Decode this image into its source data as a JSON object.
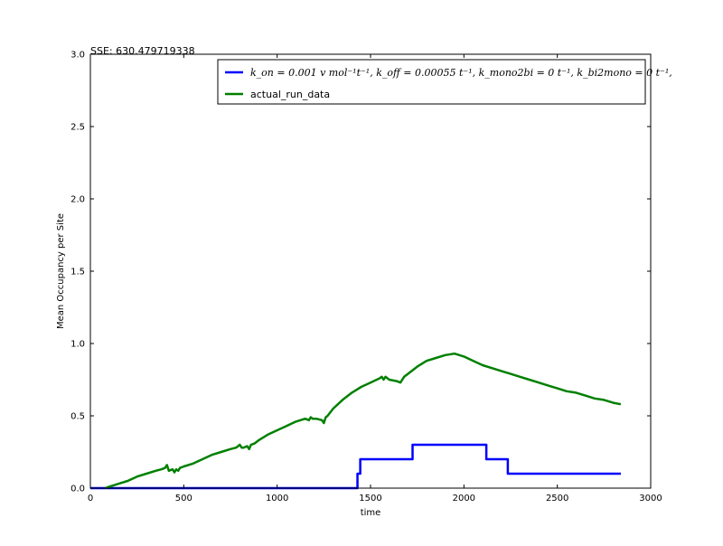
{
  "chart_data": {
    "type": "line",
    "title": "SSE: 630.479719338",
    "xlabel": "time",
    "ylabel": "Mean Occupancy per Site",
    "xlim": [
      0,
      3000
    ],
    "ylim": [
      0,
      3.0
    ],
    "xticks": [
      "0",
      "500",
      "1000",
      "1500",
      "2000",
      "2500",
      "3000"
    ],
    "yticks": [
      "0.0",
      "0.5",
      "1.0",
      "1.5",
      "2.0",
      "2.5",
      "3.0"
    ],
    "grid": false,
    "legend_position": "top-right",
    "series": [
      {
        "name": "k_on = 0.001 v mol⁻¹t⁻¹, k_off = 0.00055 t⁻¹, k_mono2bi = 0 t⁻¹, k_bi2mono = 0 t⁻¹,",
        "color": "#0000ff",
        "step": true,
        "x": [
          0,
          1430,
          1430,
          1445,
          1445,
          1725,
          1725,
          2120,
          2120,
          2235,
          2235,
          2840
        ],
        "y": [
          0.0,
          0.0,
          0.1,
          0.1,
          0.2,
          0.2,
          0.3,
          0.3,
          0.2,
          0.2,
          0.1,
          0.1
        ]
      },
      {
        "name": "actual_run_data",
        "color": "#008000",
        "step": false,
        "x": [
          80,
          100,
          150,
          200,
          250,
          300,
          350,
          380,
          400,
          410,
          420,
          440,
          450,
          460,
          470,
          480,
          500,
          550,
          600,
          650,
          700,
          750,
          780,
          790,
          800,
          810,
          820,
          840,
          850,
          860,
          880,
          900,
          950,
          1000,
          1050,
          1100,
          1150,
          1170,
          1180,
          1190,
          1210,
          1240,
          1250,
          1260,
          1270,
          1300,
          1350,
          1400,
          1450,
          1500,
          1550,
          1560,
          1570,
          1580,
          1600,
          1640,
          1660,
          1670,
          1680,
          1700,
          1750,
          1800,
          1850,
          1900,
          1950,
          2000,
          2050,
          2100,
          2150,
          2200,
          2250,
          2300,
          2350,
          2400,
          2450,
          2500,
          2550,
          2600,
          2650,
          2700,
          2750,
          2800,
          2840
        ],
        "y": [
          0.0,
          0.01,
          0.03,
          0.05,
          0.08,
          0.1,
          0.12,
          0.13,
          0.14,
          0.16,
          0.12,
          0.13,
          0.11,
          0.13,
          0.12,
          0.14,
          0.15,
          0.17,
          0.2,
          0.23,
          0.25,
          0.27,
          0.28,
          0.29,
          0.3,
          0.28,
          0.28,
          0.29,
          0.27,
          0.3,
          0.31,
          0.33,
          0.37,
          0.4,
          0.43,
          0.46,
          0.48,
          0.47,
          0.49,
          0.48,
          0.48,
          0.47,
          0.45,
          0.49,
          0.5,
          0.55,
          0.61,
          0.66,
          0.7,
          0.73,
          0.76,
          0.77,
          0.75,
          0.77,
          0.75,
          0.74,
          0.73,
          0.75,
          0.77,
          0.79,
          0.84,
          0.88,
          0.9,
          0.92,
          0.93,
          0.91,
          0.88,
          0.85,
          0.83,
          0.81,
          0.79,
          0.77,
          0.75,
          0.73,
          0.71,
          0.69,
          0.67,
          0.66,
          0.64,
          0.62,
          0.61,
          0.59,
          0.58
        ]
      }
    ]
  }
}
